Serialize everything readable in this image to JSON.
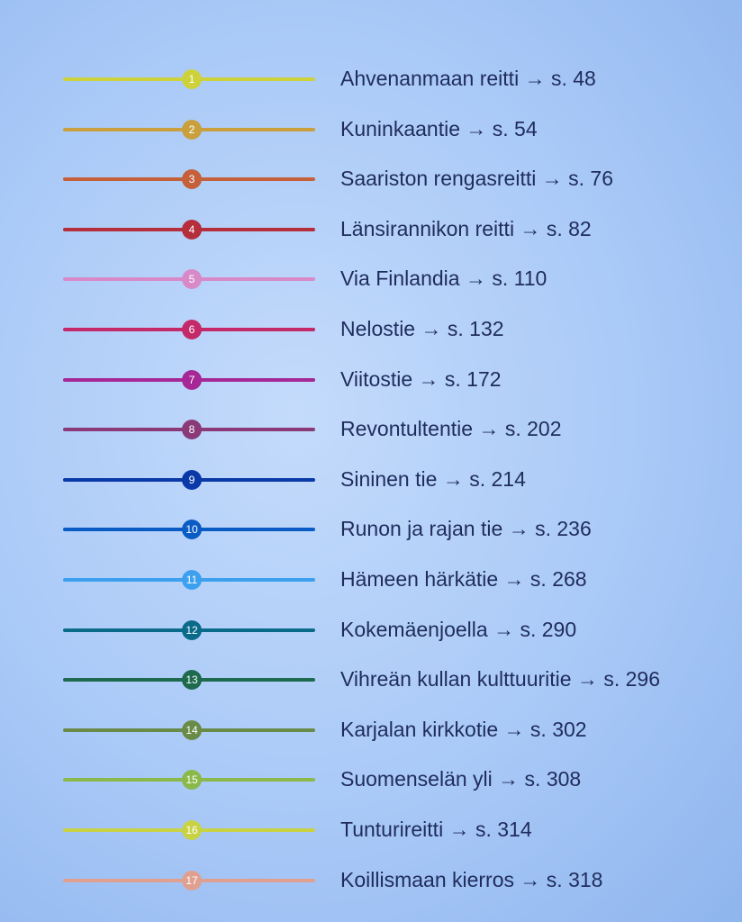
{
  "routes": [
    {
      "num": "1",
      "name": "Ahvenanmaan reitti",
      "page": "→ s. 48",
      "color": "#cdd23a"
    },
    {
      "num": "2",
      "name": "Kuninkaantie",
      "page": "→ s. 54",
      "color": "#c9a03d"
    },
    {
      "num": "3",
      "name": "Saariston rengasreitti",
      "page": "→ s. 76",
      "color": "#c5613a"
    },
    {
      "num": "4",
      "name": "Länsirannikon reitti",
      "page": "→ s. 82",
      "color": "#b42e3c"
    },
    {
      "num": "5",
      "name": "Via Finlandia",
      "page": "→ s. 110",
      "color": "#d88ac8"
    },
    {
      "num": "6",
      "name": "Nelostie",
      "page": "→ s. 132",
      "color": "#c42a6a"
    },
    {
      "num": "7",
      "name": "Viitostie",
      "page": "→ s. 172",
      "color": "#a52896"
    },
    {
      "num": "8",
      "name": "Revontultentie",
      "page": "→ s. 202",
      "color": "#8a3a78"
    },
    {
      "num": "9",
      "name": "Sininen tie",
      "page": "→ s. 214",
      "color": "#0a3aa8"
    },
    {
      "num": "10",
      "name": "Runon ja rajan tie",
      "page": "→ s. 236",
      "color": "#0a5cc4"
    },
    {
      "num": "11",
      "name": "Hämeen härkätie",
      "page": "→ s. 268",
      "color": "#3ca0ee"
    },
    {
      "num": "12",
      "name": "Kokemäenjoella",
      "page": "→ s. 290",
      "color": "#0a6a8a"
    },
    {
      "num": "13",
      "name": "Vihreän kullan kulttuuritie",
      "page": "→ s. 296",
      "color": "#1e6a4e"
    },
    {
      "num": "14",
      "name": "Karjalan kirkkotie",
      "page": "→ s. 302",
      "color": "#6a8a48"
    },
    {
      "num": "15",
      "name": "Suomenselän yli",
      "page": "→ s. 308",
      "color": "#8ab84a"
    },
    {
      "num": "16",
      "name": "Tunturireitti",
      "page": "→ s. 314",
      "color": "#c8d244"
    },
    {
      "num": "17",
      "name": "Koillismaan kierros",
      "page": "→ s. 318",
      "color": "#e0a090"
    }
  ]
}
